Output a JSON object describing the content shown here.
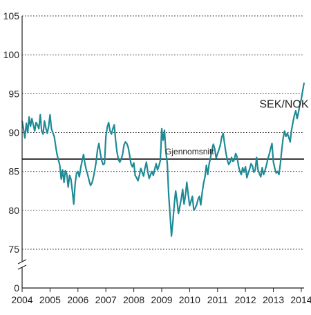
{
  "chart_data": {
    "type": "line",
    "title": "",
    "xlabel": "",
    "ylabel": "",
    "x_ticks": [
      "2004",
      "2005",
      "2006",
      "2007",
      "2008",
      "2009",
      "2010",
      "2011",
      "2012",
      "2013",
      "2014"
    ],
    "y_ticks": [
      "0",
      "75",
      "80",
      "85",
      "90",
      "95",
      "100",
      "105"
    ],
    "ylim": [
      75,
      105
    ],
    "y_axis_break": true,
    "grid": "horizontal dotted",
    "series": [
      {
        "name": "SEK/NOK",
        "color": "#1e8a96",
        "x": [
          2004.0,
          2004.05,
          2004.1,
          2004.15,
          2004.2,
          2004.25,
          2004.3,
          2004.35,
          2004.4,
          2004.45,
          2004.5,
          2004.55,
          2004.6,
          2004.65,
          2004.7,
          2004.75,
          2004.8,
          2004.85,
          2004.9,
          2004.95,
          2005.0,
          2005.05,
          2005.1,
          2005.15,
          2005.2,
          2005.25,
          2005.3,
          2005.35,
          2005.4,
          2005.45,
          2005.5,
          2005.55,
          2005.6,
          2005.65,
          2005.7,
          2005.75,
          2005.8,
          2005.85,
          2005.9,
          2005.95,
          2006.0,
          2006.05,
          2006.1,
          2006.15,
          2006.2,
          2006.25,
          2006.3,
          2006.35,
          2006.4,
          2006.45,
          2006.5,
          2006.55,
          2006.6,
          2006.65,
          2006.7,
          2006.75,
          2006.8,
          2006.85,
          2006.9,
          2006.95,
          2007.0,
          2007.05,
          2007.1,
          2007.15,
          2007.2,
          2007.25,
          2007.3,
          2007.35,
          2007.4,
          2007.45,
          2007.5,
          2007.55,
          2007.6,
          2007.65,
          2007.7,
          2007.75,
          2007.8,
          2007.85,
          2007.9,
          2007.95,
          2008.0,
          2008.05,
          2008.1,
          2008.15,
          2008.2,
          2008.25,
          2008.3,
          2008.35,
          2008.4,
          2008.45,
          2008.5,
          2008.55,
          2008.6,
          2008.65,
          2008.7,
          2008.75,
          2008.8,
          2008.85,
          2008.9,
          2008.95,
          2009.0,
          2009.05,
          2009.1,
          2009.15,
          2009.2,
          2009.25,
          2009.3,
          2009.35,
          2009.4,
          2009.45,
          2009.5,
          2009.55,
          2009.6,
          2009.65,
          2009.7,
          2009.75,
          2009.8,
          2009.85,
          2009.9,
          2009.95,
          2010.0,
          2010.05,
          2010.1,
          2010.15,
          2010.2,
          2010.25,
          2010.3,
          2010.35,
          2010.4,
          2010.45,
          2010.5,
          2010.55,
          2010.6,
          2010.65,
          2010.7,
          2010.75,
          2010.8,
          2010.85,
          2010.9,
          2010.95,
          2011.0,
          2011.05,
          2011.1,
          2011.15,
          2011.2,
          2011.25,
          2011.3,
          2011.35,
          2011.4,
          2011.45,
          2011.5,
          2011.55,
          2011.6,
          2011.65,
          2011.7,
          2011.75,
          2011.8,
          2011.85,
          2011.9,
          2011.95,
          2012.0,
          2012.05,
          2012.1,
          2012.15,
          2012.2,
          2012.25,
          2012.3,
          2012.35,
          2012.4,
          2012.45,
          2012.5,
          2012.55,
          2012.6,
          2012.65,
          2012.7,
          2012.75,
          2012.8,
          2012.85,
          2012.9,
          2012.95,
          2013.0,
          2013.05,
          2013.1,
          2013.15,
          2013.2,
          2013.25,
          2013.3,
          2013.35,
          2013.4,
          2013.45,
          2013.5,
          2013.55,
          2013.6,
          2013.65,
          2013.7,
          2013.75,
          2013.8,
          2013.85,
          2013.9,
          2013.95,
          2014.0,
          2014.05,
          2014.1
        ],
        "y": [
          91.5,
          90.5,
          89.3,
          91.2,
          90.0,
          92.0,
          90.8,
          91.8,
          91.0,
          90.2,
          91.3,
          91.0,
          90.5,
          92.3,
          90.2,
          89.8,
          91.5,
          90.6,
          89.9,
          90.8,
          92.3,
          90.5,
          90.0,
          89.5,
          88.3,
          87.2,
          86.5,
          85.8,
          84.0,
          85.2,
          83.6,
          85.1,
          84.7,
          83.0,
          84.5,
          84.0,
          82.5,
          80.8,
          83.5,
          84.8,
          85.0,
          84.3,
          85.5,
          86.4,
          87.2,
          86.0,
          85.2,
          84.6,
          83.8,
          83.2,
          83.5,
          84.2,
          85.1,
          86.2,
          87.8,
          88.6,
          87.4,
          86.4,
          85.9,
          86.0,
          89.5,
          90.7,
          91.3,
          90.2,
          89.8,
          90.5,
          91.0,
          89.0,
          87.5,
          86.5,
          86.2,
          86.6,
          87.2,
          88.4,
          88.8,
          88.6,
          88.1,
          87.1,
          86.0,
          85.6,
          86.1,
          84.5,
          84.2,
          83.8,
          84.5,
          85.4,
          84.9,
          84.4,
          85.4,
          86.2,
          85.0,
          84.1,
          84.6,
          85.0,
          84.5,
          85.3,
          86.0,
          85.2,
          85.7,
          86.4,
          90.5,
          89.0,
          90.3,
          87.5,
          86.0,
          82.0,
          79.4,
          76.7,
          78.5,
          80.8,
          82.5,
          81.2,
          79.6,
          80.5,
          81.5,
          82.7,
          80.8,
          81.9,
          83.6,
          82.0,
          80.6,
          81.2,
          81.8,
          80.0,
          80.3,
          80.7,
          81.4,
          81.8,
          80.7,
          82.3,
          83.5,
          84.3,
          85.8,
          84.6,
          86.0,
          86.8,
          87.8,
          88.5,
          87.9,
          86.7,
          87.3,
          87.8,
          88.4,
          89.4,
          89.9,
          88.6,
          87.4,
          86.5,
          85.9,
          86.2,
          86.8,
          86.3,
          86.5,
          87.3,
          86.9,
          85.7,
          85.0,
          84.6,
          85.5,
          84.9,
          85.6,
          84.2,
          84.8,
          85.3,
          86.0,
          85.7,
          84.9,
          85.2,
          86.8,
          85.2,
          84.7,
          84.3,
          85.5,
          84.6,
          85.1,
          85.8,
          86.6,
          87.2,
          87.9,
          88.6,
          86.2,
          85.4,
          84.8,
          85.0,
          84.6,
          86.0,
          87.8,
          89.3,
          90.2,
          89.5,
          89.9,
          89.4,
          88.8,
          90.3,
          91.3,
          92.2,
          92.8,
          91.8,
          92.6,
          93.6,
          94.3,
          95.4,
          96.4
        ]
      }
    ],
    "annotations": [
      {
        "text": "SEK/NOK",
        "x": 2012.5,
        "y": 93.2
      },
      {
        "text": "Gjennomsnitt",
        "x": 2010.0,
        "y": 87.2,
        "reference_value": 86.6
      }
    ]
  }
}
